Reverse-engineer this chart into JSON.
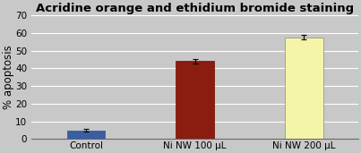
{
  "title": "Acridine orange and ethidium bromide staining",
  "categories": [
    "Control",
    "Ni NW 100 μL",
    "Ni NW 200 μL"
  ],
  "values": [
    5.0,
    44.0,
    57.5
  ],
  "errors": [
    0.8,
    1.2,
    1.2
  ],
  "bar_colors": [
    "#3a5fa0",
    "#8b1c10",
    "#f5f5aa"
  ],
  "bar_edgecolors": [
    "#3a5fa0",
    "#7a1a0e",
    "#999977"
  ],
  "ylabel": "% apoptosis",
  "ylim": [
    0,
    70
  ],
  "yticks": [
    0,
    10,
    20,
    30,
    40,
    50,
    60,
    70
  ],
  "background_color": "#c8c8c8",
  "plot_bg_color": "#c8c8c8",
  "grid_color": "#ffffff",
  "title_fontsize": 9.5,
  "label_fontsize": 8.5,
  "tick_fontsize": 7.5,
  "bar_width": 0.35
}
